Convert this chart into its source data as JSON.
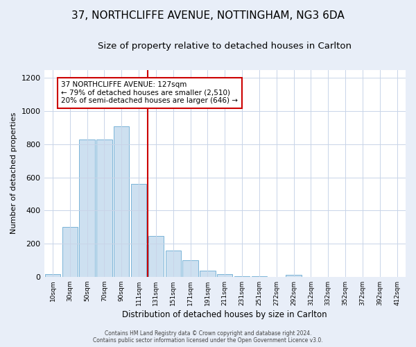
{
  "title": "37, NORTHCLIFFE AVENUE, NOTTINGHAM, NG3 6DA",
  "subtitle": "Size of property relative to detached houses in Carlton",
  "xlabel": "Distribution of detached houses by size in Carlton",
  "ylabel": "Number of detached properties",
  "bar_labels": [
    "10sqm",
    "30sqm",
    "50sqm",
    "70sqm",
    "90sqm",
    "111sqm",
    "131sqm",
    "151sqm",
    "171sqm",
    "191sqm",
    "211sqm",
    "231sqm",
    "251sqm",
    "272sqm",
    "292sqm",
    "312sqm",
    "332sqm",
    "352sqm",
    "372sqm",
    "392sqm",
    "412sqm"
  ],
  "bar_values": [
    15,
    300,
    830,
    830,
    910,
    560,
    245,
    160,
    100,
    35,
    15,
    5,
    5,
    0,
    10,
    0,
    0,
    0,
    0,
    0,
    0
  ],
  "bar_color": "#cde0f0",
  "bar_edge_color": "#7ab4d8",
  "vline_color": "#cc0000",
  "annotation_lines": [
    "37 NORTHCLIFFE AVENUE: 127sqm",
    "← 79% of detached houses are smaller (2,510)",
    "20% of semi-detached houses are larger (646) →"
  ],
  "annotation_box_color": "#ffffff",
  "annotation_box_edge_color": "#cc0000",
  "ylim": [
    0,
    1250
  ],
  "yticks": [
    0,
    200,
    400,
    600,
    800,
    1000,
    1200
  ],
  "footer_lines": [
    "Contains HM Land Registry data © Crown copyright and database right 2024.",
    "Contains public sector information licensed under the Open Government Licence v3.0."
  ],
  "background_color": "#e8eef8",
  "plot_bg_color": "#ffffff",
  "title_fontsize": 11,
  "subtitle_fontsize": 9.5
}
